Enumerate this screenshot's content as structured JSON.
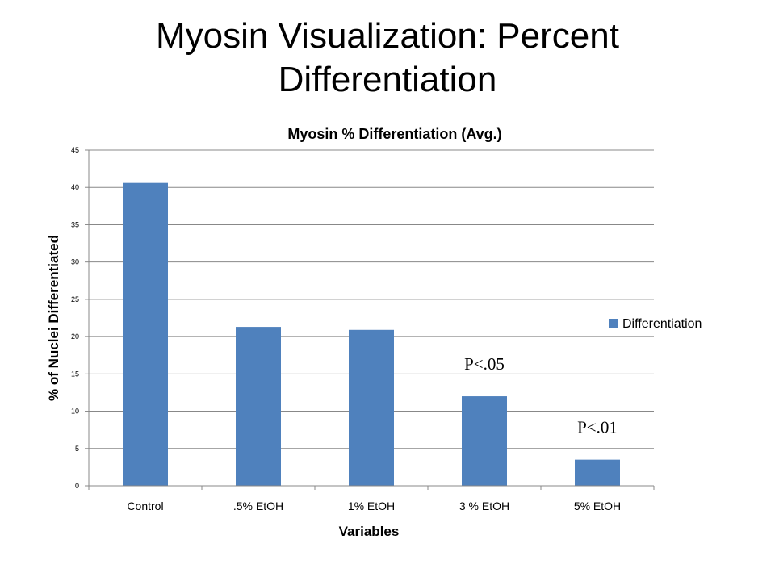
{
  "slide": {
    "title": "Myosin Visualization: Percent Differentiation"
  },
  "chart_data": {
    "type": "bar",
    "title": "Myosin % Differentiation (Avg.)",
    "xlabel": "Variables",
    "ylabel": "% of Nuclei Differentiated",
    "categories": [
      "Control",
      ".5% EtOH",
      "1% EtOH",
      "3 % EtOH",
      "5% EtOH"
    ],
    "series": [
      {
        "name": "Differentiation",
        "values": [
          40.6,
          21.3,
          20.9,
          12.0,
          3.5
        ]
      }
    ],
    "ylim": [
      0,
      45
    ],
    "yticks": [
      0,
      5,
      10,
      15,
      20,
      25,
      30,
      35,
      40,
      45
    ],
    "grid": true,
    "legend": "right",
    "bar_color": "#4F81BD",
    "annotations": [
      {
        "text": "P<.05",
        "category": "3 % EtOH"
      },
      {
        "text": "P<.01",
        "category": "5% EtOH"
      }
    ]
  }
}
